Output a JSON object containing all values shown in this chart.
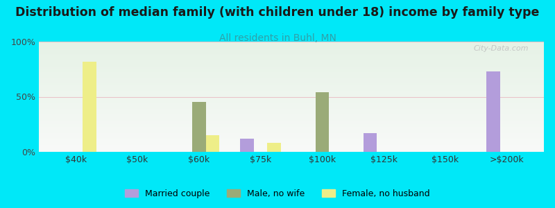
{
  "title": "Distribution of median family (with children under 18) income by family type",
  "subtitle": "All residents in Buhl, MN",
  "background_color": "#00e8f8",
  "categories": [
    "$40k",
    "$50k",
    "$60k",
    "$75k",
    "$100k",
    "$125k",
    "$150k",
    ">$200k"
  ],
  "series": {
    "Married couple": {
      "color": "#b39ddb",
      "values": [
        0,
        0,
        0,
        12,
        0,
        17,
        0,
        73
      ]
    },
    "Male, no wife": {
      "color": "#9aab78",
      "values": [
        0,
        0,
        45,
        0,
        54,
        0,
        0,
        0
      ]
    },
    "Female, no husband": {
      "color": "#eeee88",
      "values": [
        82,
        0,
        15,
        8,
        0,
        0,
        0,
        0
      ]
    }
  },
  "ylim": [
    0,
    100
  ],
  "yticks": [
    0,
    50,
    100
  ],
  "ytick_labels": [
    "0%",
    "50%",
    "100%"
  ],
  "grid_color": "#e8a0b0",
  "grid_alpha": 0.6,
  "bar_width": 0.22,
  "title_fontsize": 12.5,
  "subtitle_fontsize": 10,
  "subtitle_color": "#30a0a8",
  "watermark": "City-Data.com",
  "plot_bg_top": "#e6f2e6",
  "plot_bg_bottom": "#f8faf8"
}
